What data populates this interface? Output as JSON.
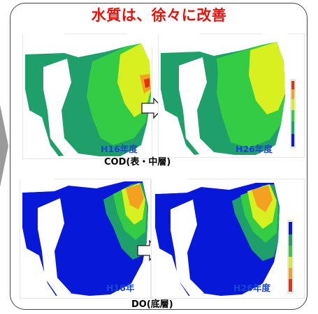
{
  "title": "水質は、徐々に改善",
  "cod": {
    "left_year": "H16年度",
    "right_year": "H26年度",
    "caption": "COD(表・中層)"
  },
  "do": {
    "left_year": "H16年",
    "right_year": "H26年度",
    "caption": "DO(底層)"
  },
  "colors": {
    "title": "#e8120c",
    "label": "#1a44d6",
    "sea_low": "#0718d8",
    "sea_mid": "#1f9f6a",
    "sea_green": "#33cc44",
    "sea_yellow": "#d8f020",
    "sea_orange": "#f4a020",
    "sea_red": "#e83010"
  }
}
